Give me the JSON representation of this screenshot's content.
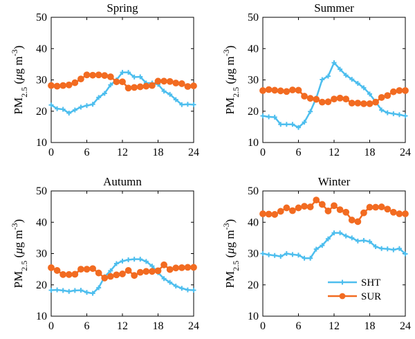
{
  "chart_data": [
    {
      "type": "line",
      "title": "Spring",
      "xlabel": "",
      "ylabel": "PM2.5 (μg m-3)",
      "ylim": [
        10,
        50
      ],
      "xlim": [
        0,
        24
      ],
      "xticks": [
        0,
        6,
        12,
        18,
        24
      ],
      "yticks": [
        10,
        20,
        30,
        40,
        50
      ],
      "x": [
        0,
        1,
        2,
        3,
        4,
        5,
        6,
        7,
        8,
        9,
        10,
        11,
        12,
        13,
        14,
        15,
        16,
        17,
        18,
        19,
        20,
        21,
        22,
        23,
        24
      ],
      "series": [
        {
          "name": "SHT",
          "values": [
            22.0,
            20.8,
            20.6,
            19.4,
            20.4,
            21.3,
            21.8,
            22.2,
            24.4,
            25.7,
            28.4,
            30.0,
            32.4,
            32.4,
            30.9,
            31.0,
            29.0,
            29.0,
            28.6,
            26.4,
            25.4,
            23.7,
            22.1,
            22.2,
            22.1
          ]
        },
        {
          "name": "SUR",
          "values": [
            28.2,
            28.0,
            28.2,
            28.4,
            29.1,
            30.3,
            31.6,
            31.5,
            31.6,
            31.4,
            31.0,
            29.4,
            29.4,
            27.4,
            27.6,
            27.8,
            28.0,
            28.2,
            29.6,
            29.6,
            29.5,
            29.0,
            28.8,
            27.9,
            28.1
          ]
        }
      ]
    },
    {
      "type": "line",
      "title": "Summer",
      "xlabel": "",
      "ylabel": "PM2.5 (μg m-3)",
      "ylim": [
        10,
        50
      ],
      "xlim": [
        0,
        24
      ],
      "xticks": [
        0,
        6,
        12,
        18,
        24
      ],
      "yticks": [
        10,
        20,
        30,
        40,
        50
      ],
      "x": [
        0,
        1,
        2,
        3,
        4,
        5,
        6,
        7,
        8,
        9,
        10,
        11,
        12,
        13,
        14,
        15,
        16,
        17,
        18,
        19,
        20,
        21,
        22,
        23,
        24
      ],
      "series": [
        {
          "name": "SHT",
          "values": [
            18.5,
            18.2,
            18.1,
            15.8,
            15.8,
            15.8,
            14.8,
            16.5,
            19.9,
            24.2,
            30.1,
            31.2,
            35.5,
            33.4,
            31.5,
            30.2,
            28.9,
            27.5,
            25.5,
            23.0,
            20.4,
            19.5,
            19.2,
            18.9,
            18.5
          ]
        },
        {
          "name": "SUR",
          "values": [
            26.6,
            26.9,
            26.7,
            26.5,
            26.3,
            26.8,
            26.7,
            24.8,
            24.1,
            23.8,
            22.9,
            23.0,
            23.9,
            24.2,
            23.9,
            22.6,
            22.6,
            22.4,
            22.4,
            22.9,
            24.4,
            25.0,
            26.2,
            26.6,
            26.6
          ]
        }
      ]
    },
    {
      "type": "line",
      "title": "Autumn",
      "xlabel": "",
      "ylabel": "PM2.5 (μg m-3)",
      "ylim": [
        10,
        50
      ],
      "xlim": [
        0,
        24
      ],
      "xticks": [
        0,
        6,
        12,
        18,
        24
      ],
      "yticks": [
        10,
        20,
        30,
        40,
        50
      ],
      "x": [
        0,
        1,
        2,
        3,
        4,
        5,
        6,
        7,
        8,
        9,
        10,
        11,
        12,
        13,
        14,
        15,
        16,
        17,
        18,
        19,
        20,
        21,
        22,
        23,
        24
      ],
      "series": [
        {
          "name": "SHT",
          "values": [
            18.3,
            18.4,
            18.2,
            17.9,
            18.2,
            18.3,
            17.6,
            17.3,
            19.1,
            22.6,
            24.5,
            26.8,
            27.6,
            28.0,
            28.2,
            28.2,
            27.5,
            26.0,
            23.9,
            22.0,
            20.8,
            19.6,
            18.9,
            18.4,
            18.3
          ]
        },
        {
          "name": "SUR",
          "values": [
            25.5,
            24.6,
            23.3,
            23.3,
            23.4,
            25.0,
            25.0,
            25.2,
            23.8,
            22.2,
            22.7,
            23.2,
            23.5,
            24.6,
            23.0,
            24.0,
            24.3,
            24.3,
            24.5,
            26.4,
            24.9,
            25.4,
            25.5,
            25.6,
            25.6
          ]
        }
      ]
    },
    {
      "type": "line",
      "title": "Winter",
      "xlabel": "",
      "ylabel": "PM2.5 (μg m-3)",
      "ylim": [
        10,
        50
      ],
      "xlim": [
        0,
        24
      ],
      "xticks": [
        0,
        6,
        12,
        18,
        24
      ],
      "yticks": [
        10,
        20,
        30,
        40,
        50
      ],
      "x": [
        0,
        1,
        2,
        3,
        4,
        5,
        6,
        7,
        8,
        9,
        10,
        11,
        12,
        13,
        14,
        15,
        16,
        17,
        18,
        19,
        20,
        21,
        22,
        23,
        24
      ],
      "series": [
        {
          "name": "SHT",
          "values": [
            30.0,
            29.6,
            29.4,
            29.1,
            30.0,
            29.7,
            29.5,
            28.5,
            28.5,
            31.4,
            32.6,
            34.7,
            36.6,
            36.6,
            35.6,
            35.0,
            34.0,
            34.2,
            33.8,
            32.2,
            31.6,
            31.5,
            31.2,
            31.6,
            29.9
          ]
        },
        {
          "name": "SUR",
          "values": [
            42.7,
            42.6,
            42.5,
            43.5,
            44.6,
            43.7,
            44.6,
            45.1,
            44.9,
            47.1,
            45.7,
            43.6,
            45.3,
            44.0,
            43.2,
            40.7,
            40.2,
            43.0,
            44.8,
            44.8,
            44.9,
            44.2,
            43.2,
            42.7,
            42.7
          ]
        }
      ]
    }
  ],
  "legend": {
    "placement": "bottom-right",
    "entries": [
      {
        "label": "SHT",
        "marker": "plus"
      },
      {
        "label": "SUR",
        "marker": "circle"
      }
    ]
  },
  "ylabel_parts": {
    "main": "PM",
    "sub": "2.5",
    "open": " (",
    "mu": "μ",
    "unit": "g m",
    "sup": "-3",
    "close": ")"
  },
  "colors": {
    "SHT": "#4DBEEE",
    "SUR": "#F26B21",
    "axis": "#000000"
  }
}
